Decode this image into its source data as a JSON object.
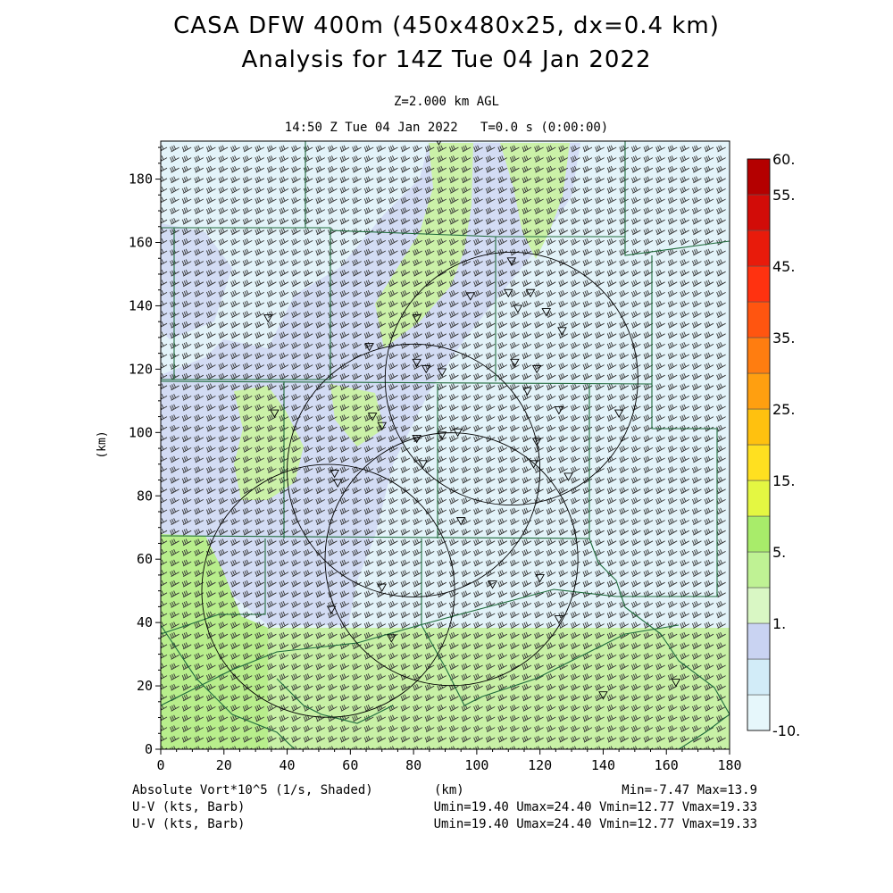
{
  "header": {
    "title_line1": "CASA DFW 400m (450x480x25, dx=0.4 km)",
    "title_line2": "Analysis for 14Z Tue 04 Jan 2022",
    "level": "Z=2.000 km AGL",
    "valid_time": "14:50 Z Tue 04 Jan 2022",
    "model_time": "T=0.0 s (0:00:00)"
  },
  "footer": {
    "shaded_field": "Absolute Vort*10^5 (1/s, Shaded)",
    "xaxis_unit": "(km)",
    "minmax": "Min=-7.47 Max=13.9",
    "barb1_label": "U-V (kts, Barb)",
    "barb1_stats": "Umin=19.40 Umax=24.40 Vmin=12.77 Vmax=19.33",
    "barb2_label": "U-V (kts, Barb)",
    "barb2_stats": "Umin=19.40 Umax=24.40 Vmin=12.77 Vmax=19.33"
  },
  "chart_data": {
    "type": "heatmap",
    "xlabel": "(km)",
    "ylabel": "(km)",
    "xlim": [
      0,
      180
    ],
    "ylim": [
      0,
      192
    ],
    "xticks": [
      "0",
      "20",
      "40",
      "60",
      "80",
      "100",
      "120",
      "140",
      "160",
      "180"
    ],
    "yticks": [
      "0",
      "20",
      "40",
      "60",
      "80",
      "100",
      "120",
      "140",
      "160",
      "180"
    ],
    "field_range": {
      "min": -7.47,
      "max": 13.9
    },
    "colorbar": {
      "position": "right",
      "labels": [
        "60.",
        "55.",
        "45.",
        "35.",
        "25.",
        "15.",
        "5.",
        "1.",
        "-10."
      ],
      "colors": [
        "#e6f7fb",
        "#d2ecf8",
        "#c9d3f2",
        "#d9f7c4",
        "#bff294",
        "#a8ec6a",
        "#e4f742",
        "#ffe020",
        "#ffc10f",
        "#ff9f10",
        "#ff7d10",
        "#ff5510",
        "#ff3210",
        "#e81b0b",
        "#d20c08",
        "#b40000"
      ]
    },
    "wind_barbs": {
      "u_range_kts": [
        19.4,
        24.4
      ],
      "v_range_kts": [
        12.77,
        19.33
      ],
      "direction": "southwesterly"
    },
    "radar_coverage_circles": [
      {
        "center_x_km": 111,
        "center_y_km": 117,
        "radius_km": 40
      },
      {
        "center_x_km": 80,
        "center_y_km": 88,
        "radius_km": 40
      },
      {
        "center_x_km": 53,
        "center_y_km": 50,
        "radius_km": 40
      },
      {
        "center_x_km": 92,
        "center_y_km": 60,
        "radius_km": 40
      }
    ],
    "station_markers_km": [
      [
        88,
        192
      ],
      [
        111,
        154
      ],
      [
        98,
        143
      ],
      [
        110,
        144
      ],
      [
        117,
        144
      ],
      [
        122,
        138
      ],
      [
        113,
        139
      ],
      [
        127,
        132
      ],
      [
        81,
        136
      ],
      [
        66,
        127
      ],
      [
        34,
        136
      ],
      [
        81,
        122
      ],
      [
        84,
        120
      ],
      [
        89,
        119
      ],
      [
        112,
        122
      ],
      [
        119,
        120
      ],
      [
        67,
        105
      ],
      [
        70,
        102
      ],
      [
        81,
        98
      ],
      [
        89,
        99
      ],
      [
        94,
        100
      ],
      [
        116,
        113
      ],
      [
        126,
        107
      ],
      [
        145,
        106
      ],
      [
        119,
        97
      ],
      [
        118,
        90
      ],
      [
        83,
        90
      ],
      [
        129,
        86
      ],
      [
        55,
        87
      ],
      [
        56,
        84
      ],
      [
        95,
        72
      ],
      [
        70,
        51
      ],
      [
        105,
        52
      ],
      [
        120,
        54
      ],
      [
        54,
        44
      ],
      [
        73,
        35
      ],
      [
        126,
        41
      ],
      [
        140,
        17
      ],
      [
        163,
        21
      ],
      [
        36,
        106
      ]
    ]
  },
  "colors": {
    "land_lightblue": "#e3f3f9",
    "vort_lavender": "#d3dcf4",
    "vort_lightgreen": "#cbf1a8",
    "vort_green": "#b8ee8c",
    "county_lines": "#1f6b3c"
  }
}
